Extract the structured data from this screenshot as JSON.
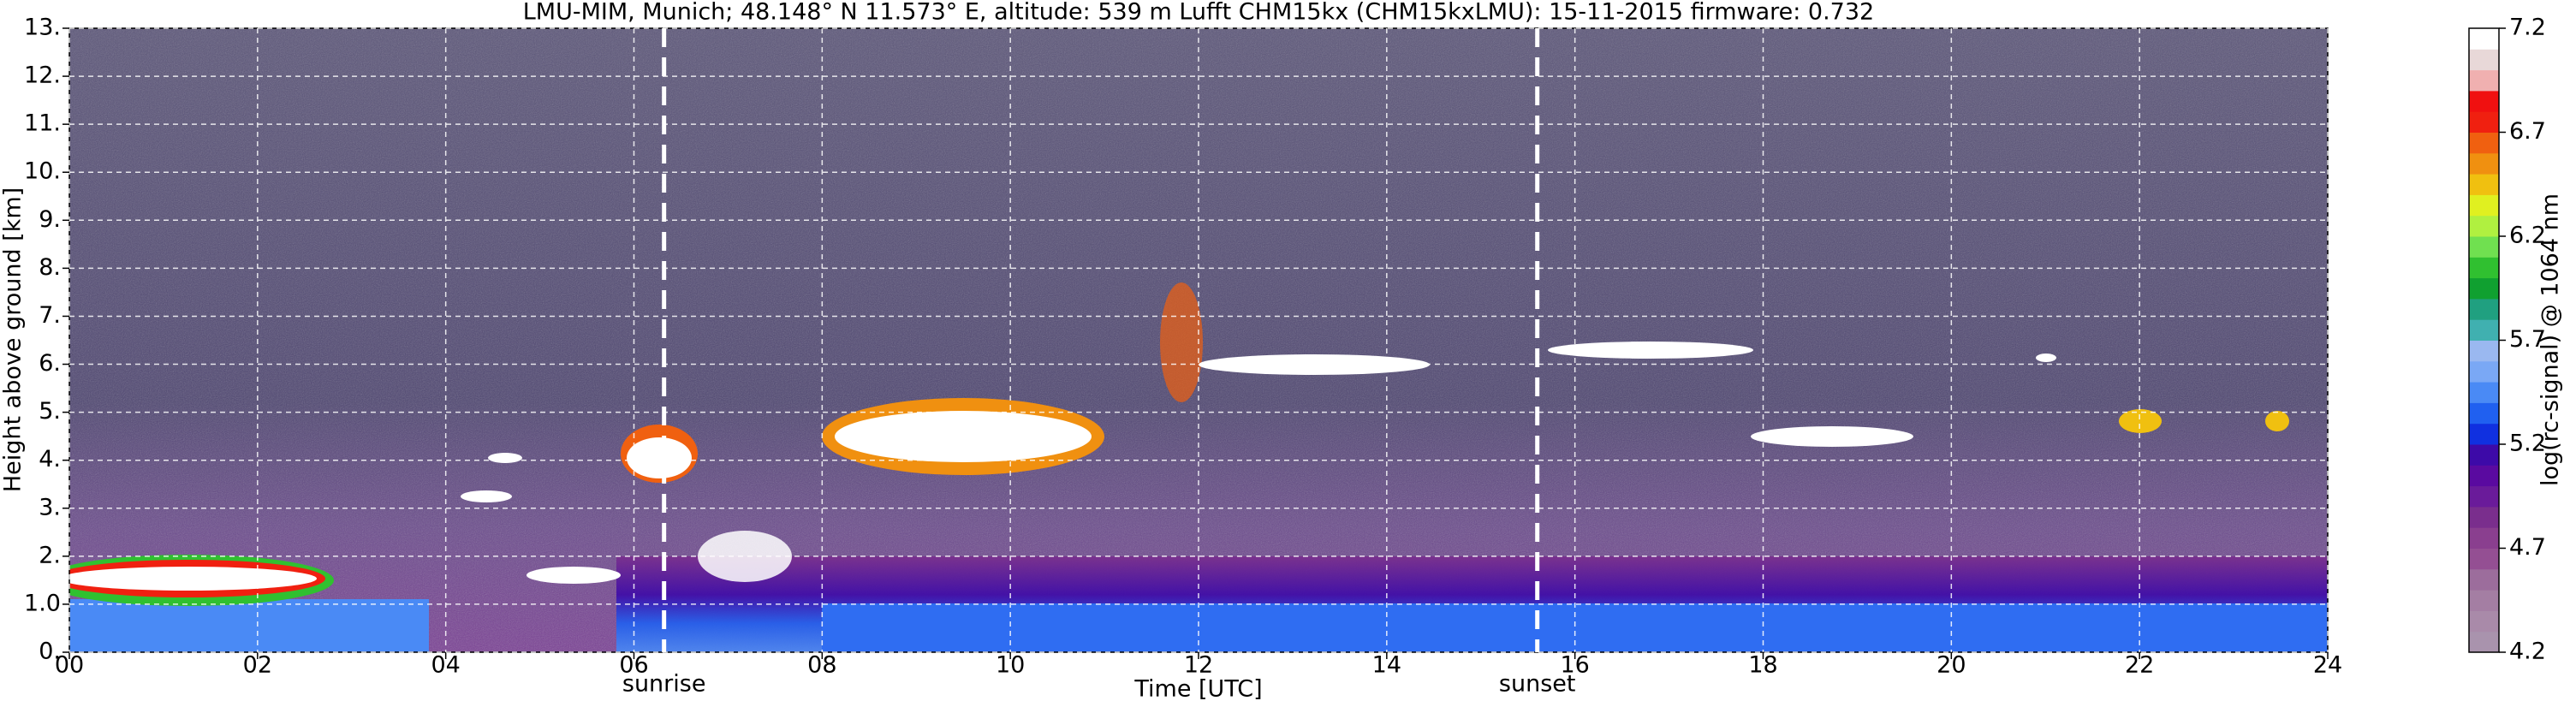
{
  "chart_data": {
    "type": "heatmap",
    "title": "LMU-MIM, Munich; 48.148° N 11.573° E, altitude: 539 m    Lufft CHM15kx (CHM15kxLMU): 15-11-2015    firmware: 0.732",
    "x_label": "Time [UTC]",
    "y_label": "Height above ground [km]",
    "xlim": [
      0,
      24
    ],
    "xticks": [
      {
        "value": 0,
        "label": "00"
      },
      {
        "value": 2,
        "label": "02"
      },
      {
        "value": 4,
        "label": "04"
      },
      {
        "value": 6,
        "label": "06"
      },
      {
        "value": 8,
        "label": "08"
      },
      10,
      12,
      14,
      16,
      18,
      20,
      22,
      24
    ],
    "ylim": [
      0,
      13
    ],
    "yticks": [
      {
        "value": 0,
        "label": "0."
      },
      {
        "value": 1,
        "label": "1.0"
      },
      {
        "value": 2,
        "label": "2."
      },
      {
        "value": 3,
        "label": "3."
      },
      {
        "value": 4,
        "label": "4."
      },
      {
        "value": 5,
        "label": "5."
      },
      {
        "value": 6,
        "label": "6."
      },
      {
        "value": 7,
        "label": "7."
      },
      {
        "value": 8,
        "label": "8."
      },
      {
        "value": 9,
        "label": "9."
      },
      {
        "value": 10,
        "label": "10."
      },
      {
        "value": 11,
        "label": "11."
      },
      {
        "value": 12,
        "label": "12."
      },
      {
        "value": 13,
        "label": "13."
      }
    ],
    "grid": true,
    "markers": [
      {
        "label": "sunrise",
        "x": 6.32
      },
      {
        "label": "sunset",
        "x": 15.6
      }
    ],
    "colorbar": {
      "label": "log(rc-signal) @ 1064 nm",
      "lim": [
        4.2,
        7.2
      ],
      "ticks": [
        4.2,
        4.7,
        5.2,
        5.7,
        6.2,
        6.7,
        7.2
      ],
      "colors": [
        "#a993ad",
        "#a98aa9",
        "#a47ea3",
        "#9c6d9c",
        "#944f93",
        "#8a3f8f",
        "#7a2e8d",
        "#6a1b9a",
        "#5a0aa0",
        "#3d0aa8",
        "#1030e0",
        "#2060f0",
        "#4a8af5",
        "#7aa8f5",
        "#9ab8f0",
        "#40b0b0",
        "#20a080",
        "#10a030",
        "#30c030",
        "#70e050",
        "#b0f040",
        "#e0f020",
        "#f0c010",
        "#f09010",
        "#f06010",
        "#f02010",
        "#f01010",
        "#f0b0b0",
        "#e8d8d8",
        "#ffffff"
      ]
    }
  }
}
